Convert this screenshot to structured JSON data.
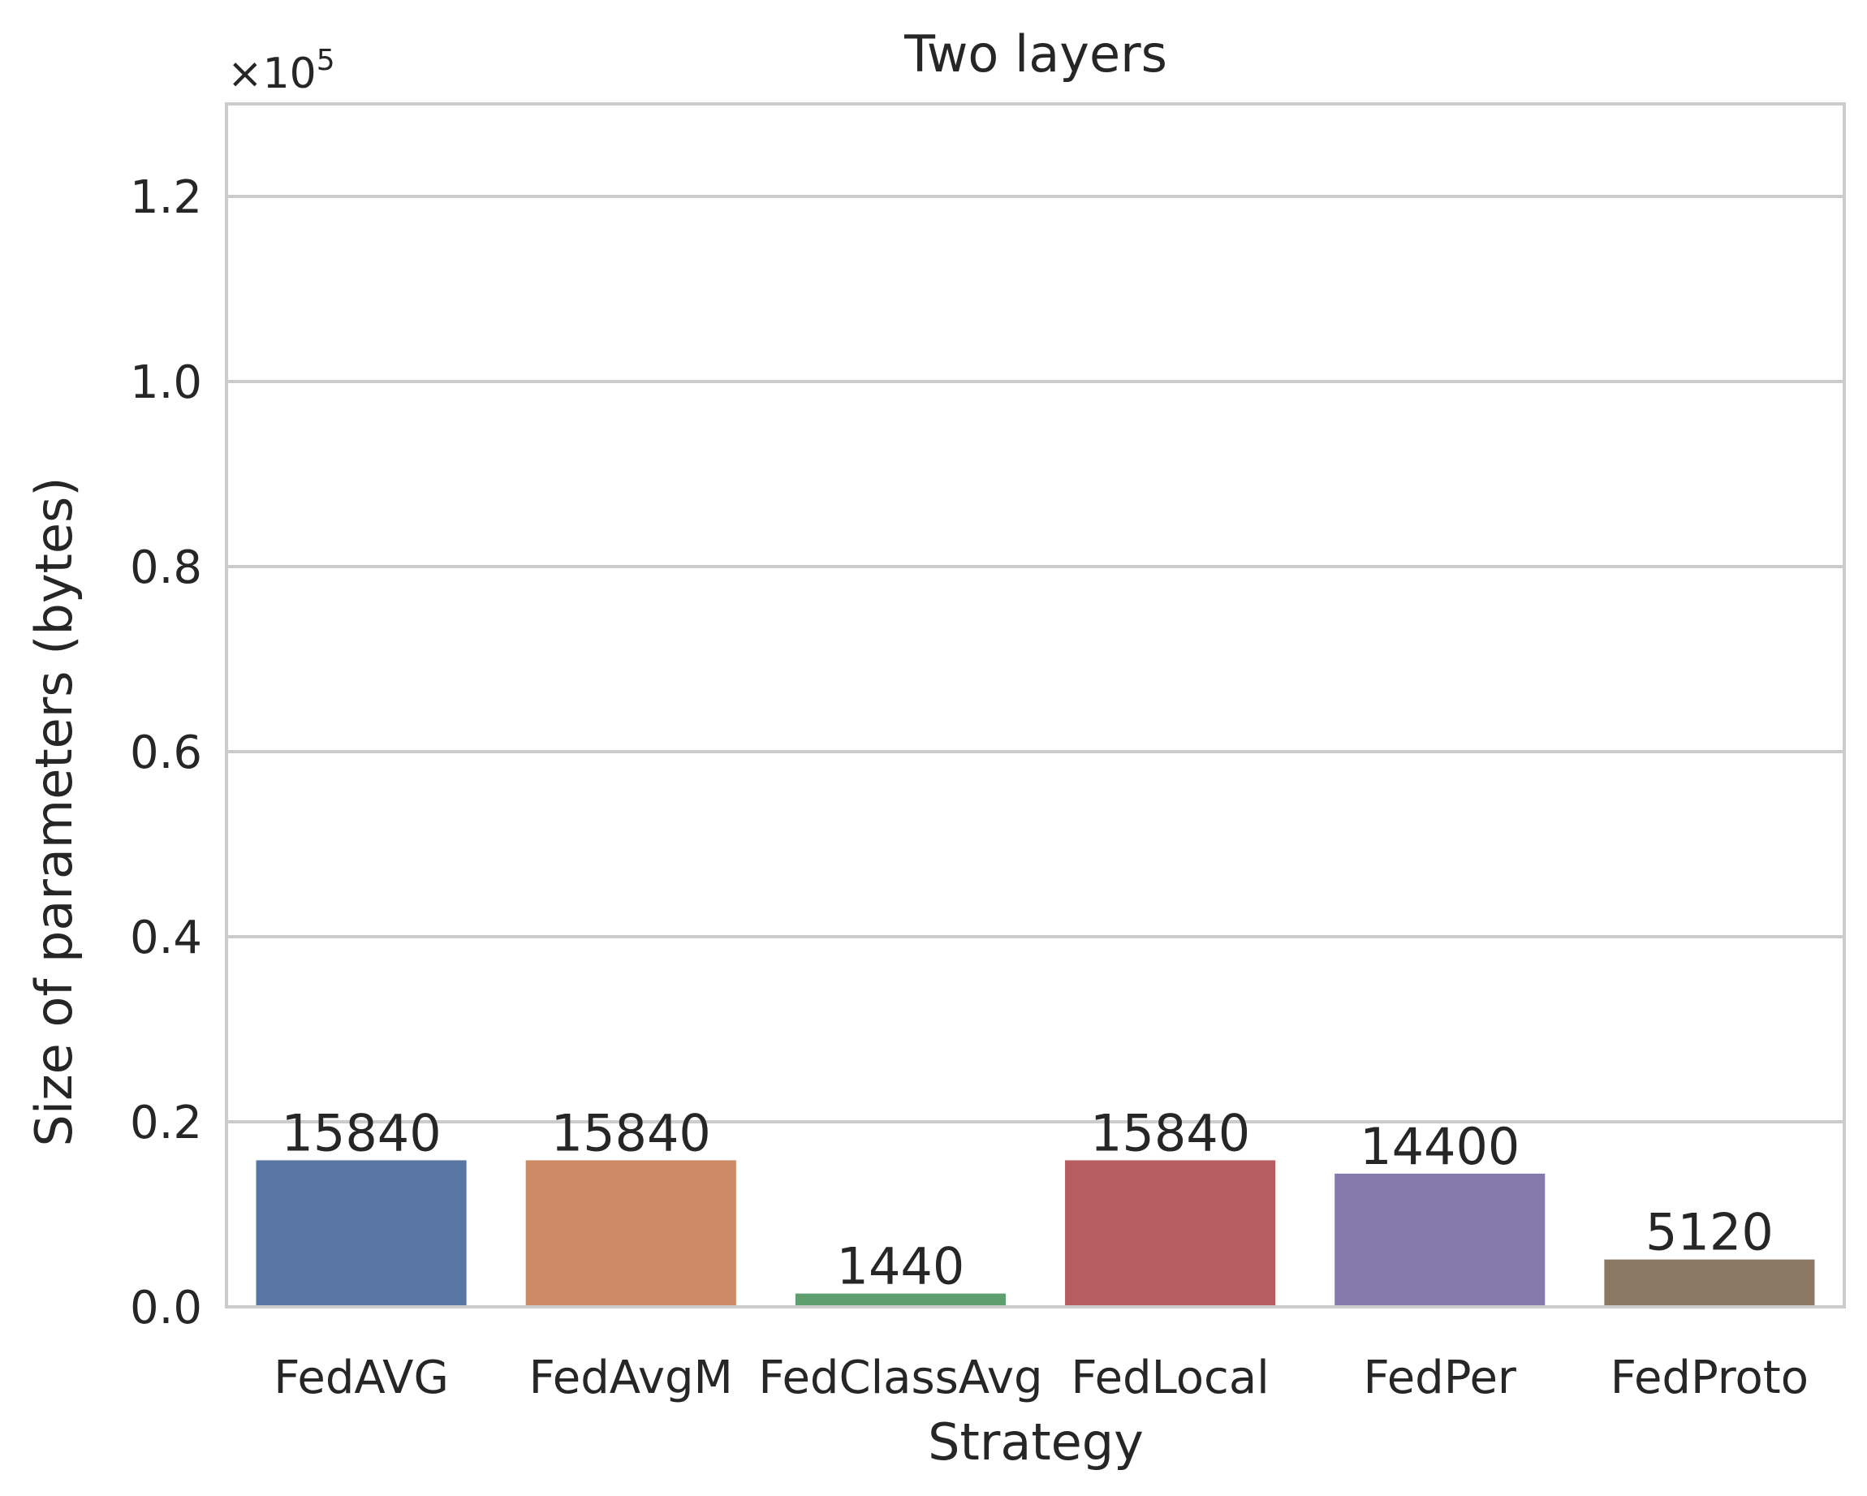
{
  "chart_data": {
    "type": "bar",
    "title": "Two layers",
    "xlabel": "Strategy",
    "ylabel": "Size of parameters (bytes)",
    "scale_label": {
      "base": "×10",
      "exponent": "5"
    },
    "scale_factor": 100000,
    "ylim": [
      0,
      130000
    ],
    "yticks": [
      0,
      20000,
      40000,
      60000,
      80000,
      100000,
      120000
    ],
    "ytick_labels": [
      "0.0",
      "0.2",
      "0.4",
      "0.6",
      "0.8",
      "1.0",
      "1.2"
    ],
    "categories": [
      "FedAVG",
      "FedAvgM",
      "FedClassAvg",
      "FedLocal",
      "FedPer",
      "FedProto"
    ],
    "values": [
      15840,
      15840,
      1440,
      15840,
      14400,
      5120
    ],
    "bar_labels": [
      "15840",
      "15840",
      "1440",
      "15840",
      "14400",
      "5120"
    ],
    "colors": [
      "#5975a4",
      "#cc8963",
      "#5f9e6e",
      "#b55d60",
      "#857aab",
      "#8d7866"
    ],
    "grid": true,
    "grid_color": "#cccccc",
    "frame_color": "#cccccc",
    "text_color": "#262626"
  }
}
